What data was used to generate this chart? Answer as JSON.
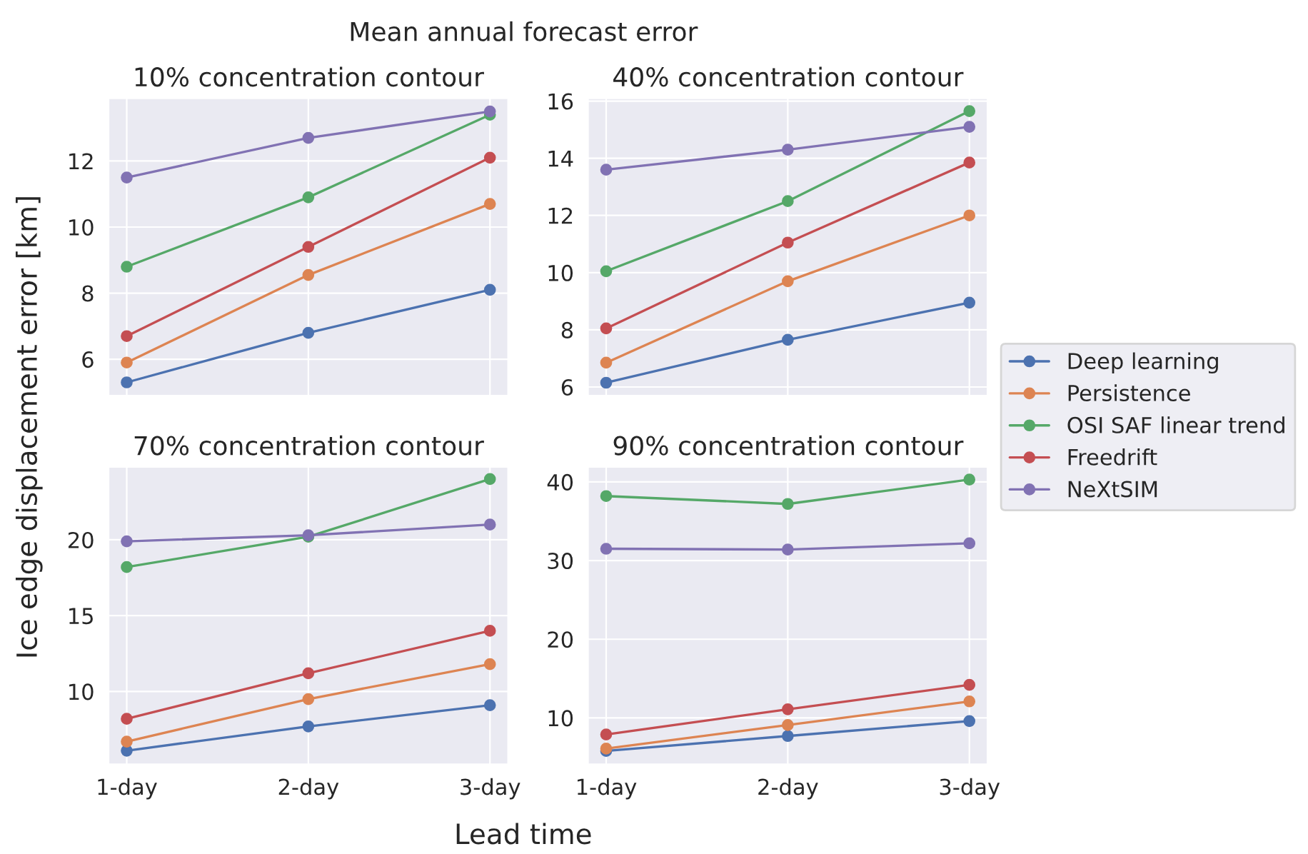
{
  "chart_data": [
    {
      "type": "line",
      "title": "10% concentration contour",
      "annotations": [
        "Mean annual forecast error"
      ],
      "ylabel": "Ice edge displacement error [km]",
      "categories": [
        null,
        null,
        null
      ],
      "ylim": [
        4.9,
        13.9
      ],
      "yticks": [
        6,
        8,
        10,
        12
      ],
      "grid": true,
      "marker": "circle",
      "tick_labels": "y",
      "legend": "right",
      "series": [
        {
          "name": "Deep learning",
          "color": "#4c72b0",
          "values": [
            5.3,
            6.8,
            8.1
          ]
        },
        {
          "name": "Persistence",
          "color": "#dd8452",
          "values": [
            5.9,
            8.55,
            10.7
          ]
        },
        {
          "name": "OSI SAF linear trend",
          "color": "#55a868",
          "values": [
            8.8,
            10.9,
            13.4
          ]
        },
        {
          "name": "Freedrift",
          "color": "#c44e52",
          "values": [
            6.7,
            9.4,
            12.1
          ]
        },
        {
          "name": "NeXtSIM",
          "color": "#8172b3",
          "values": [
            11.5,
            12.7,
            13.5
          ]
        }
      ]
    },
    {
      "type": "line",
      "title": "40% concentration contour",
      "categories": [
        null,
        null,
        null
      ],
      "ylim": [
        5.7,
        16.1
      ],
      "yticks": [
        6,
        8,
        10,
        12,
        14,
        16
      ],
      "grid": true,
      "marker": "circle",
      "tick_labels": "y",
      "series": [
        {
          "color": "#4c72b0",
          "values": [
            6.15,
            7.65,
            8.95
          ]
        },
        {
          "color": "#dd8452",
          "values": [
            6.85,
            9.7,
            12.0
          ]
        },
        {
          "color": "#55a868",
          "values": [
            10.05,
            12.5,
            15.65
          ]
        },
        {
          "color": "#c44e52",
          "values": [
            8.05,
            11.05,
            13.85
          ]
        },
        {
          "color": "#8172b3",
          "values": [
            13.6,
            14.3,
            15.1
          ]
        }
      ]
    },
    {
      "type": "line",
      "title": "70% concentration contour",
      "xlabel": "Lead time",
      "categories": [
        "1-day",
        "2-day",
        "3-day"
      ],
      "ylim": [
        5.2,
        24.8
      ],
      "yticks": [
        10,
        15,
        20
      ],
      "grid": true,
      "marker": "circle",
      "series": [
        {
          "color": "#4c72b0",
          "values": [
            6.1,
            7.7,
            9.1
          ]
        },
        {
          "color": "#dd8452",
          "values": [
            6.7,
            9.5,
            11.8
          ]
        },
        {
          "color": "#55a868",
          "values": [
            18.2,
            20.2,
            24.0
          ]
        },
        {
          "color": "#c44e52",
          "values": [
            8.2,
            11.2,
            14.0
          ]
        },
        {
          "color": "#8172b3",
          "values": [
            19.9,
            20.3,
            21.0
          ]
        }
      ]
    },
    {
      "type": "line",
      "title": "90% concentration contour",
      "categories": [
        "1-day",
        "2-day",
        "3-day"
      ],
      "ylim": [
        4.1,
        41.9
      ],
      "yticks": [
        10,
        20,
        30,
        40
      ],
      "grid": true,
      "marker": "circle",
      "series": [
        {
          "color": "#4c72b0",
          "values": [
            5.8,
            7.7,
            9.6
          ]
        },
        {
          "color": "#dd8452",
          "values": [
            6.1,
            9.1,
            12.1
          ]
        },
        {
          "color": "#55a868",
          "values": [
            38.2,
            37.2,
            40.3
          ]
        },
        {
          "color": "#c44e52",
          "values": [
            7.9,
            11.1,
            14.2
          ]
        },
        {
          "color": "#8172b3",
          "values": [
            31.5,
            31.4,
            32.2
          ]
        }
      ]
    }
  ]
}
